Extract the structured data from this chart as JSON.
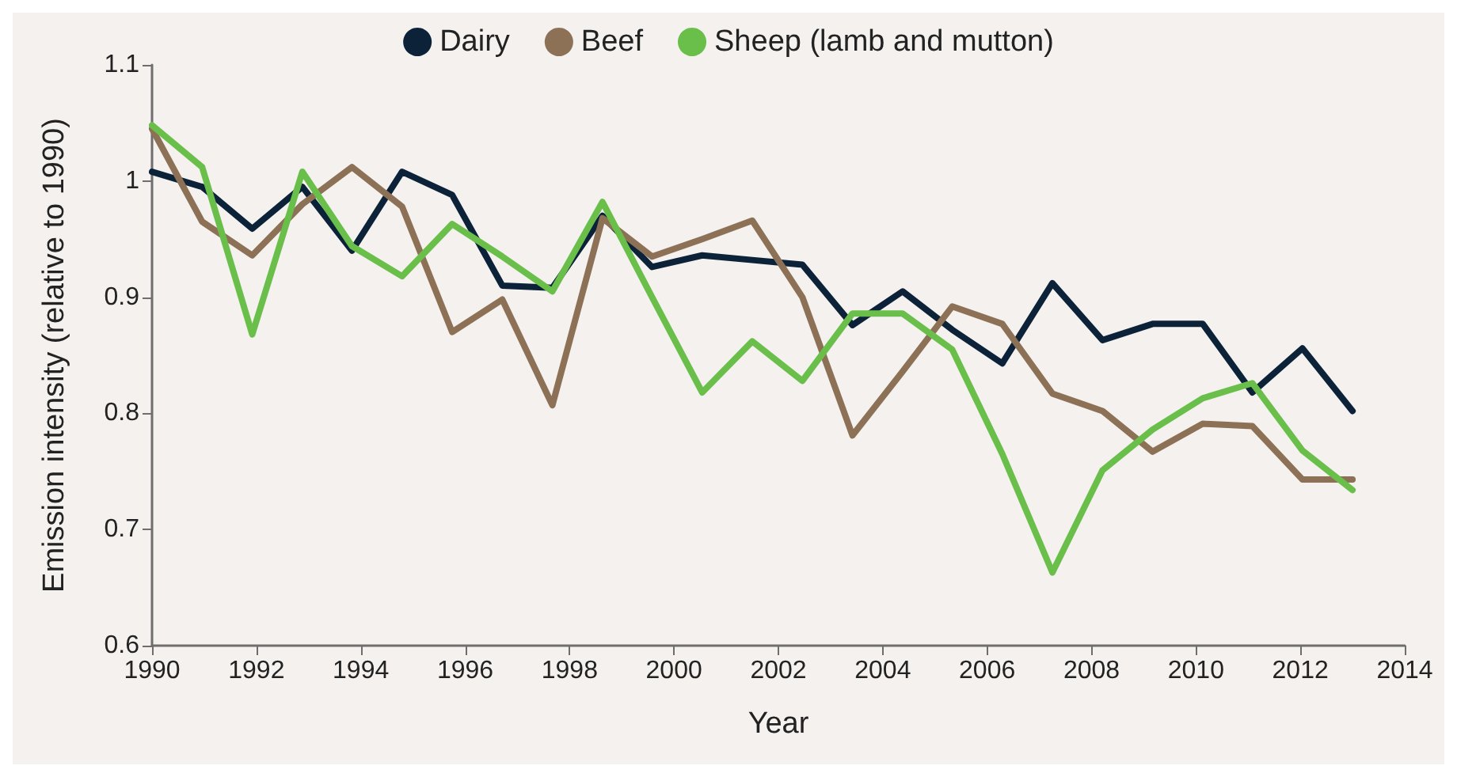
{
  "chart_data": {
    "type": "line",
    "xlabel": "Year",
    "ylabel": "Emission intensity (relative to 1990)",
    "x": [
      1990,
      1990.96,
      1991.92,
      1992.88,
      1993.83,
      1994.79,
      1995.75,
      1996.71,
      1997.67,
      1998.63,
      1999.58,
      2000.54,
      2001.5,
      2002.46,
      2003.42,
      2004.38,
      2005.33,
      2006.29,
      2007.25,
      2008.21,
      2009.17,
      2010.13,
      2011.08,
      2012.04,
      2013
    ],
    "series": [
      {
        "name": "Dairy",
        "color": "#0b2239",
        "values": [
          1.008,
          0.995,
          0.959,
          0.995,
          0.94,
          1.008,
          0.988,
          0.91,
          0.908,
          0.97,
          0.926,
          0.936,
          0.932,
          0.928,
          0.876,
          0.905,
          0.872,
          0.843,
          0.912,
          0.863,
          0.877,
          0.877,
          0.818,
          0.856,
          0.802
        ]
      },
      {
        "name": "Beef",
        "color": "#8c7156",
        "values": [
          1.045,
          0.965,
          0.936,
          0.98,
          1.012,
          0.978,
          0.87,
          0.898,
          0.807,
          0.968,
          0.935,
          0.95,
          0.966,
          0.9,
          0.781,
          0.836,
          0.892,
          0.877,
          0.817,
          0.802,
          0.767,
          0.791,
          0.789,
          0.743,
          0.743
        ]
      },
      {
        "name": "Sheep (lamb and mutton)",
        "color": "#6abf4b",
        "values": [
          1.048,
          1.012,
          0.868,
          1.008,
          0.944,
          0.918,
          0.963,
          0.935,
          0.905,
          0.982,
          0.9,
          0.818,
          0.862,
          0.828,
          0.886,
          0.886,
          0.855,
          0.765,
          0.663,
          0.751,
          0.786,
          0.813,
          0.826,
          0.768,
          0.734
        ]
      }
    ],
    "xlim": [
      1990,
      2014
    ],
    "xticks": [
      1990,
      1992,
      1994,
      1996,
      1998,
      2000,
      2002,
      2004,
      2006,
      2008,
      2010,
      2012,
      2014
    ],
    "ylim": [
      0.6,
      1.1
    ],
    "yticks": [
      0.6,
      0.7,
      0.8,
      0.9,
      1,
      1.1
    ],
    "grid": false,
    "legend": "top",
    "marker": "none",
    "line_style": "solid"
  }
}
